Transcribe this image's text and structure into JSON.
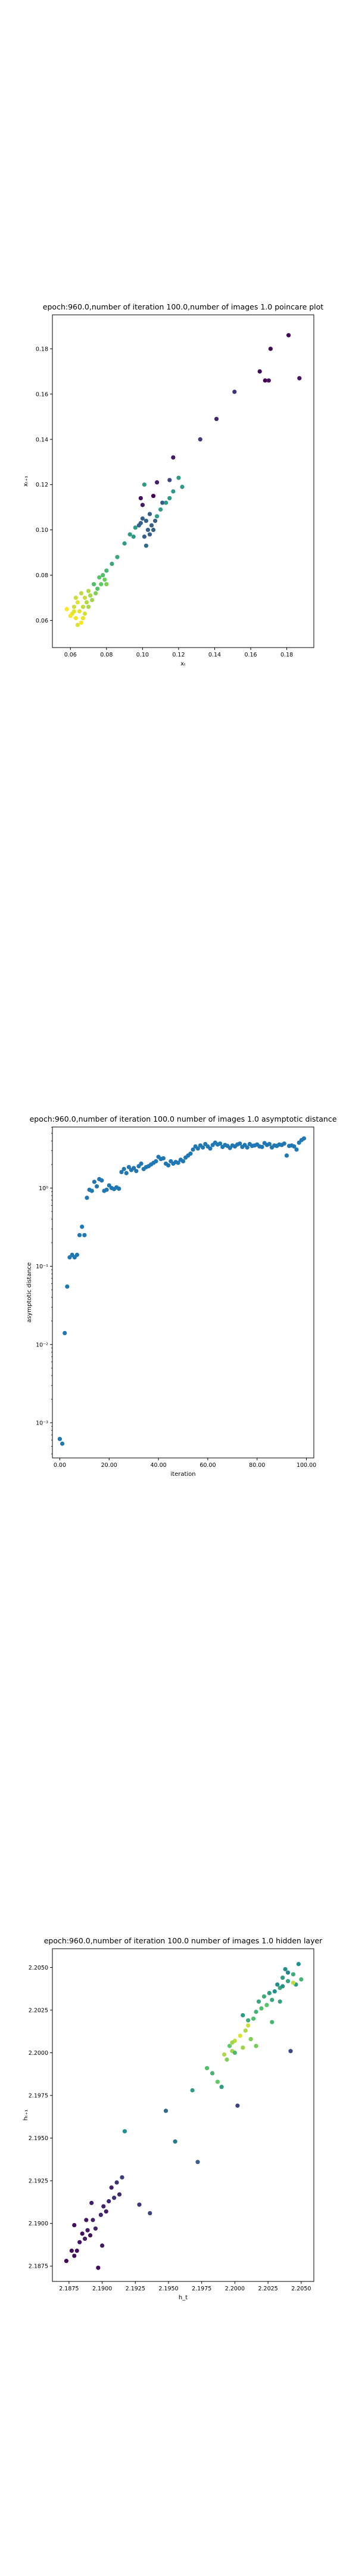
{
  "chart_data": [
    {
      "type": "scatter",
      "title": "epoch:960.0,number of iteration 100.0,number of images 1.0 poincare plot",
      "xlabel": "xₜ",
      "ylabel": "xₜ₊₁",
      "xlim": [
        0.05,
        0.195
      ],
      "ylim": [
        0.048,
        0.195
      ],
      "xticks": [
        0.06,
        0.08,
        0.1,
        0.12,
        0.14,
        0.16,
        0.18
      ],
      "yticks": [
        0.06,
        0.08,
        0.1,
        0.12,
        0.14,
        0.16,
        0.18
      ],
      "colormap": "viridis",
      "points": [
        [
          0.181,
          0.186,
          0.0
        ],
        [
          0.187,
          0.167,
          0.05
        ],
        [
          0.171,
          0.18,
          0.02
        ],
        [
          0.165,
          0.17,
          0.03
        ],
        [
          0.168,
          0.166,
          0.0
        ],
        [
          0.17,
          0.166,
          0.04
        ],
        [
          0.151,
          0.161,
          0.15
        ],
        [
          0.141,
          0.149,
          0.12
        ],
        [
          0.132,
          0.14,
          0.18
        ],
        [
          0.117,
          0.132,
          0.08
        ],
        [
          0.115,
          0.122,
          0.22
        ],
        [
          0.108,
          0.121,
          0.1
        ],
        [
          0.111,
          0.112,
          0.28
        ],
        [
          0.106,
          0.115,
          0.0
        ],
        [
          0.099,
          0.114,
          0.05
        ],
        [
          0.1,
          0.111,
          0.08
        ],
        [
          0.104,
          0.107,
          0.3
        ],
        [
          0.102,
          0.104,
          0.3
        ],
        [
          0.105,
          0.102,
          0.3
        ],
        [
          0.103,
          0.1,
          0.3
        ],
        [
          0.099,
          0.103,
          0.3
        ],
        [
          0.107,
          0.104,
          0.3
        ],
        [
          0.101,
          0.097,
          0.3
        ],
        [
          0.098,
          0.102,
          0.3
        ],
        [
          0.104,
          0.098,
          0.3
        ],
        [
          0.106,
          0.1,
          0.3
        ],
        [
          0.1,
          0.105,
          0.3
        ],
        [
          0.102,
          0.093,
          0.35
        ],
        [
          0.12,
          0.123,
          0.55
        ],
        [
          0.122,
          0.119,
          0.55
        ],
        [
          0.117,
          0.117,
          0.55
        ],
        [
          0.115,
          0.114,
          0.55
        ],
        [
          0.113,
          0.112,
          0.55
        ],
        [
          0.11,
          0.109,
          0.55
        ],
        [
          0.108,
          0.106,
          0.55
        ],
        [
          0.101,
          0.12,
          0.55
        ],
        [
          0.096,
          0.101,
          0.55
        ],
        [
          0.093,
          0.098,
          0.55
        ],
        [
          0.09,
          0.094,
          0.55
        ],
        [
          0.095,
          0.097,
          0.55
        ],
        [
          0.086,
          0.088,
          0.6
        ],
        [
          0.083,
          0.085,
          0.6
        ],
        [
          0.08,
          0.082,
          0.65
        ],
        [
          0.078,
          0.08,
          0.7
        ],
        [
          0.076,
          0.079,
          0.72
        ],
        [
          0.073,
          0.076,
          0.7
        ],
        [
          0.075,
          0.074,
          0.72
        ],
        [
          0.077,
          0.076,
          0.75
        ],
        [
          0.079,
          0.078,
          0.78
        ],
        [
          0.08,
          0.076,
          0.8
        ],
        [
          0.074,
          0.072,
          0.8
        ],
        [
          0.07,
          0.073,
          0.88
        ],
        [
          0.068,
          0.07,
          0.92
        ],
        [
          0.066,
          0.072,
          0.9
        ],
        [
          0.064,
          0.068,
          0.95
        ],
        [
          0.062,
          0.066,
          0.93
        ],
        [
          0.065,
          0.064,
          0.96
        ],
        [
          0.067,
          0.066,
          0.9
        ],
        [
          0.069,
          0.068,
          0.88
        ],
        [
          0.061,
          0.063,
          0.97
        ],
        [
          0.063,
          0.061,
          0.98
        ],
        [
          0.066,
          0.059,
          1.0
        ],
        [
          0.064,
          0.058,
          0.95
        ],
        [
          0.06,
          0.062,
          0.99
        ],
        [
          0.062,
          0.064,
          0.96
        ],
        [
          0.068,
          0.063,
          0.93
        ],
        [
          0.07,
          0.066,
          0.87
        ],
        [
          0.072,
          0.069,
          0.85
        ],
        [
          0.058,
          0.065,
          1.0
        ],
        [
          0.063,
          0.07,
          0.92
        ],
        [
          0.067,
          0.061,
          0.97
        ],
        [
          0.071,
          0.071,
          0.86
        ]
      ]
    },
    {
      "type": "scatter",
      "title": "epoch:960.0,number of iteration 100.0  number of images 1.0 asymptotic distance",
      "xlabel": "iteration",
      "ylabel": "asymptotic distance",
      "yscale": "log",
      "xlim": [
        -3,
        103
      ],
      "ylim_log10": [
        -3.45,
        0.78
      ],
      "xticks": [
        0,
        20,
        40,
        60,
        80,
        100
      ],
      "yticks": [
        "10⁰",
        "10⁻¹",
        "10⁻²",
        "10⁻³"
      ],
      "color": "#1f77b4",
      "x": [
        0,
        1,
        2,
        3,
        4,
        5,
        6,
        7,
        8,
        9,
        10,
        11,
        12,
        13,
        14,
        15,
        16,
        17,
        18,
        19,
        20,
        21,
        22,
        23,
        24,
        25,
        26,
        27,
        28,
        29,
        30,
        31,
        32,
        33,
        34,
        35,
        36,
        37,
        38,
        39,
        40,
        41,
        42,
        43,
        44,
        45,
        46,
        47,
        48,
        49,
        50,
        51,
        52,
        53,
        54,
        55,
        56,
        57,
        58,
        59,
        60,
        61,
        62,
        63,
        64,
        65,
        66,
        67,
        68,
        69,
        70,
        71,
        72,
        73,
        74,
        75,
        76,
        77,
        78,
        79,
        80,
        81,
        82,
        83,
        84,
        85,
        86,
        87,
        88,
        89,
        90,
        91,
        92,
        93,
        94,
        95,
        96,
        97,
        98,
        99
      ],
      "y": [
        0.00062,
        0.00054,
        0.014,
        0.055,
        0.13,
        0.14,
        0.13,
        0.14,
        0.25,
        0.32,
        0.25,
        0.75,
        0.95,
        0.92,
        1.2,
        1.05,
        1.3,
        1.25,
        0.92,
        0.95,
        1.08,
        1.0,
        0.97,
        1.02,
        0.98,
        1.6,
        1.75,
        1.55,
        1.85,
        1.7,
        1.8,
        1.65,
        1.9,
        2.05,
        1.75,
        1.85,
        1.9,
        2.0,
        2.1,
        2.2,
        2.5,
        2.35,
        2.4,
        2.05,
        1.95,
        2.2,
        2.05,
        2.15,
        2.1,
        2.3,
        2.2,
        2.45,
        2.6,
        2.75,
        3.1,
        3.4,
        3.2,
        3.5,
        3.3,
        3.65,
        3.4,
        3.2,
        3.55,
        3.8,
        3.6,
        3.7,
        3.35,
        3.55,
        3.45,
        3.25,
        3.5,
        3.4,
        3.6,
        3.7,
        3.35,
        3.55,
        3.3,
        3.65,
        3.45,
        3.5,
        3.6,
        3.4,
        3.35,
        3.75,
        3.55,
        3.65,
        3.3,
        3.5,
        3.45,
        3.6,
        3.55,
        3.7,
        2.6,
        3.45,
        3.5,
        3.4,
        3.1,
        3.8,
        4.1,
        4.3
      ]
    },
    {
      "type": "scatter",
      "title": "epoch:960.0,number of iteration 100.0  number of images 1.0 hidden layer",
      "xlabel": "h_t",
      "ylabel": "hₜ₊₁",
      "xlim": [
        2.18625,
        2.20595
      ],
      "ylim": [
        2.1866,
        2.2061
      ],
      "xticks": [
        "2.1875",
        "2.1900",
        "2.1925",
        "2.1950",
        "2.1975",
        "2.2000",
        "2.2025",
        "2.2050"
      ],
      "yticks": [
        "2.1875",
        "2.1900",
        "2.1925",
        "2.1950",
        "2.1975",
        "2.2000",
        "2.2025",
        "2.2050"
      ],
      "colormap": "viridis",
      "points": [
        [
          2.1873,
          2.1878,
          0.02
        ],
        [
          2.1877,
          2.1884,
          0.05
        ],
        [
          2.1879,
          2.1881,
          0.03
        ],
        [
          2.1883,
          2.1889,
          0.06
        ],
        [
          2.1885,
          2.1894,
          0.04
        ],
        [
          2.1887,
          2.1891,
          0.08
        ],
        [
          2.1889,
          2.1896,
          0.07
        ],
        [
          2.1891,
          2.1893,
          0.05
        ],
        [
          2.1893,
          2.1902,
          0.09
        ],
        [
          2.1895,
          2.1897,
          0.1
        ],
        [
          2.1897,
          2.1874,
          0.02
        ],
        [
          2.1899,
          2.1905,
          0.12
        ],
        [
          2.1901,
          2.191,
          0.1
        ],
        [
          2.1903,
          2.1907,
          0.08
        ],
        [
          2.1905,
          2.1913,
          0.12
        ],
        [
          2.1907,
          2.1921,
          0.1
        ],
        [
          2.1909,
          2.1915,
          0.14
        ],
        [
          2.1911,
          2.1924,
          0.16
        ],
        [
          2.1913,
          2.1917,
          0.12
        ],
        [
          2.1915,
          2.1927,
          0.18
        ],
        [
          2.1879,
          2.1899,
          0.03
        ],
        [
          2.1888,
          2.1902,
          0.06
        ],
        [
          2.19,
          2.1887,
          0.07
        ],
        [
          2.1881,
          2.1884,
          0.04
        ],
        [
          2.1892,
          2.1912,
          0.09
        ],
        [
          2.1917,
          2.1954,
          0.5
        ],
        [
          2.1928,
          2.1911,
          0.15
        ],
        [
          2.1936,
          2.1906,
          0.2
        ],
        [
          2.1948,
          2.1966,
          0.35
        ],
        [
          2.1955,
          2.1948,
          0.4
        ],
        [
          2.1968,
          2.1978,
          0.55
        ],
        [
          2.1972,
          2.1936,
          0.3
        ],
        [
          2.1979,
          2.1991,
          0.7
        ],
        [
          2.1983,
          2.1988,
          0.65
        ],
        [
          2.1987,
          2.1983,
          0.75
        ],
        [
          2.199,
          2.198,
          0.55
        ],
        [
          2.1994,
          2.1996,
          0.8
        ],
        [
          2.1996,
          2.2004,
          0.75
        ],
        [
          2.1998,
          2.2001,
          0.85
        ],
        [
          2.2,
          2.2007,
          0.9
        ],
        [
          2.2002,
          2.1969,
          0.2
        ],
        [
          2.2004,
          2.201,
          0.95
        ],
        [
          2.2006,
          2.2003,
          0.85
        ],
        [
          2.2008,
          2.2013,
          0.88
        ],
        [
          2.201,
          2.2016,
          0.92
        ],
        [
          2.2012,
          2.2008,
          0.8
        ],
        [
          2.2014,
          2.202,
          0.7
        ],
        [
          2.2016,
          2.2024,
          0.65
        ],
        [
          2.2018,
          2.203,
          0.6
        ],
        [
          2.202,
          2.2026,
          0.7
        ],
        [
          2.2022,
          2.2033,
          0.62
        ],
        [
          2.2024,
          2.2028,
          0.72
        ],
        [
          2.2026,
          2.2035,
          0.55
        ],
        [
          2.2028,
          2.2031,
          0.6
        ],
        [
          2.203,
          2.2036,
          0.5
        ],
        [
          2.2032,
          2.204,
          0.48
        ],
        [
          2.2034,
          2.2038,
          0.6
        ],
        [
          2.2036,
          2.2044,
          0.55
        ],
        [
          2.2038,
          2.2049,
          0.5
        ],
        [
          2.204,
          2.2042,
          0.58
        ],
        [
          2.2042,
          2.2001,
          0.22
        ],
        [
          2.2044,
          2.2046,
          0.62
        ],
        [
          2.2046,
          2.204,
          0.55
        ],
        [
          2.2048,
          2.2052,
          0.5
        ],
        [
          2.205,
          2.2043,
          0.65
        ],
        [
          2.204,
          2.2047,
          0.45
        ],
        [
          2.2036,
          2.2039,
          0.52
        ],
        [
          2.2044,
          2.2041,
          0.9
        ],
        [
          2.201,
          2.2019,
          0.62
        ],
        [
          2.2006,
          2.2022,
          0.55
        ],
        [
          2.1998,
          2.2006,
          0.85
        ],
        [
          2.1992,
          2.1999,
          0.88
        ],
        [
          2.2,
          2.2,
          0.68
        ],
        [
          2.2016,
          2.2004,
          0.78
        ],
        [
          2.2028,
          2.2018,
          0.66
        ],
        [
          2.2034,
          2.203,
          0.58
        ]
      ]
    }
  ]
}
